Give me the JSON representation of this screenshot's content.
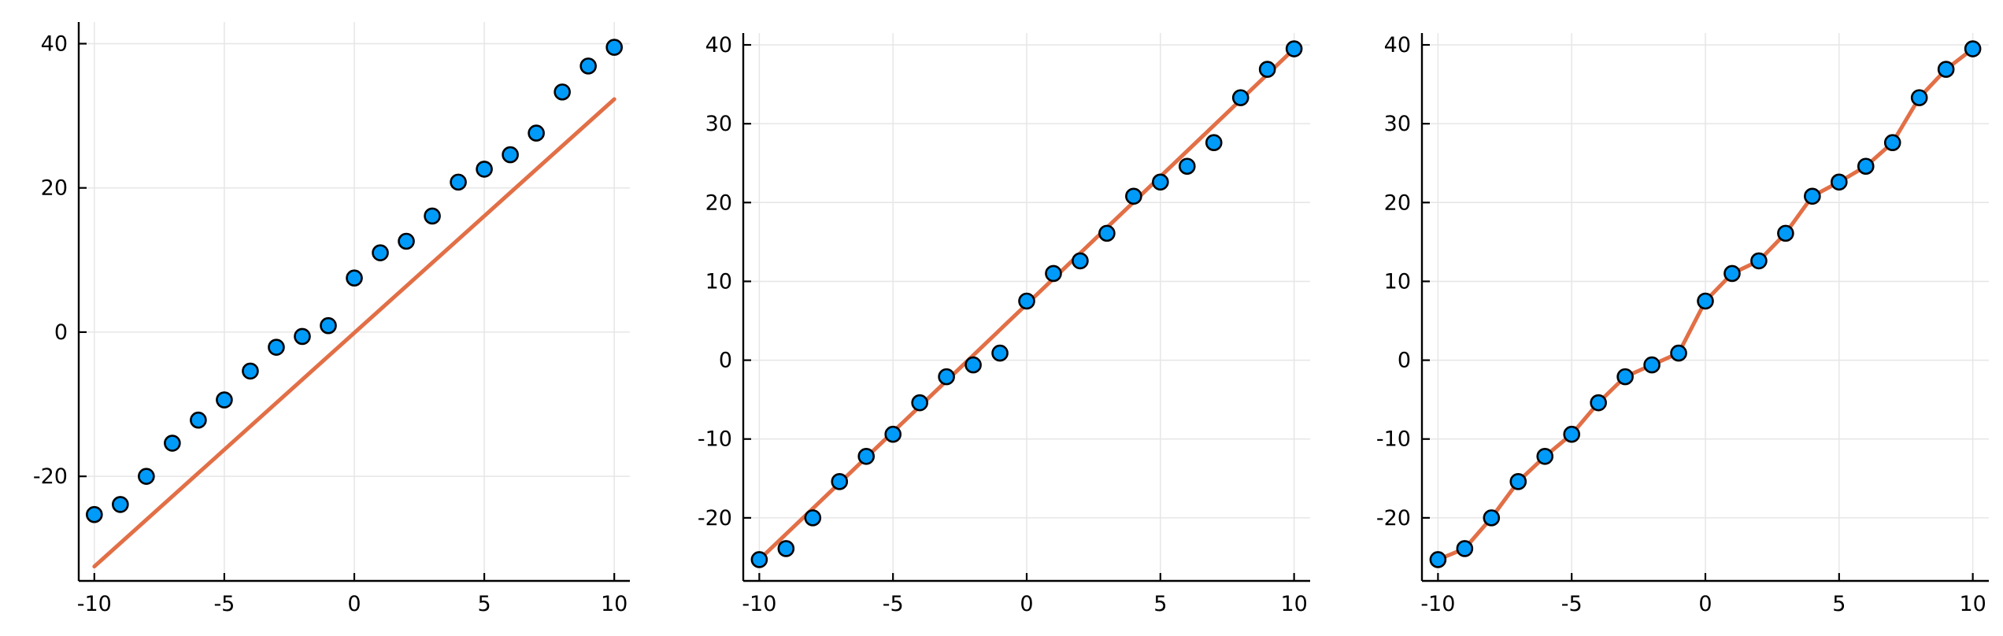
{
  "chart_data": [
    {
      "type": "scatter",
      "title": "",
      "xlabel": "",
      "ylabel": "",
      "xlim": [
        -10.6,
        10.6
      ],
      "ylim": [
        -34.5,
        43
      ],
      "xticks": [
        -10,
        -5,
        0,
        5,
        10
      ],
      "yticks": [
        -20,
        0,
        20,
        40
      ],
      "grid": true,
      "legend": "none",
      "x": [
        -10,
        -9,
        -8,
        -7,
        -6,
        -5,
        -4,
        -3,
        -2,
        -1,
        0,
        1,
        2,
        3,
        4,
        5,
        6,
        7,
        8,
        9,
        10
      ],
      "y": [
        -25.3,
        -23.9,
        -20.0,
        -15.4,
        -12.2,
        -9.4,
        -5.4,
        -2.1,
        -0.6,
        0.9,
        7.5,
        11.0,
        12.6,
        16.1,
        20.8,
        22.6,
        24.6,
        27.6,
        33.3,
        36.9,
        39.5
      ],
      "line": {
        "x": [
          -10,
          10
        ],
        "y": [
          -32.5,
          32.3
        ]
      },
      "colors": {
        "points": "#009af9",
        "line": "#e26f46"
      }
    },
    {
      "type": "scatter",
      "title": "",
      "xlabel": "",
      "ylabel": "",
      "xlim": [
        -10.6,
        10.6
      ],
      "ylim": [
        -28,
        41.5
      ],
      "xticks": [
        -10,
        -5,
        0,
        5,
        10
      ],
      "yticks": [
        -20,
        -10,
        0,
        10,
        20,
        30,
        40
      ],
      "grid": true,
      "legend": "none",
      "x": [
        -10,
        -9,
        -8,
        -7,
        -6,
        -5,
        -4,
        -3,
        -2,
        -1,
        0,
        1,
        2,
        3,
        4,
        5,
        6,
        7,
        8,
        9,
        10
      ],
      "y": [
        -25.3,
        -23.9,
        -20.0,
        -15.4,
        -12.2,
        -9.4,
        -5.4,
        -2.1,
        -0.6,
        0.9,
        7.5,
        11.0,
        12.6,
        16.1,
        20.8,
        22.6,
        24.6,
        27.6,
        33.3,
        36.9,
        39.5
      ],
      "line": {
        "x": [
          -10,
          10
        ],
        "y": [
          -25.3,
          39.5
        ]
      },
      "colors": {
        "points": "#009af9",
        "line": "#e26f46"
      }
    },
    {
      "type": "line",
      "title": "",
      "xlabel": "",
      "ylabel": "",
      "xlim": [
        -10.6,
        10.6
      ],
      "ylim": [
        -28,
        41.5
      ],
      "xticks": [
        -10,
        -5,
        0,
        5,
        10
      ],
      "yticks": [
        -20,
        -10,
        0,
        10,
        20,
        30,
        40
      ],
      "grid": true,
      "legend": "none",
      "x": [
        -10,
        -9,
        -8,
        -7,
        -6,
        -5,
        -4,
        -3,
        -2,
        -1,
        0,
        1,
        2,
        3,
        4,
        5,
        6,
        7,
        8,
        9,
        10
      ],
      "y": [
        -25.3,
        -23.9,
        -20.0,
        -15.4,
        -12.2,
        -9.4,
        -5.4,
        -2.1,
        -0.6,
        0.9,
        7.5,
        11.0,
        12.6,
        16.1,
        20.8,
        22.6,
        24.6,
        27.6,
        33.3,
        36.9,
        39.5
      ],
      "line": {
        "x": [
          -10,
          -9,
          -8,
          -7,
          -6,
          -5,
          -4,
          -3,
          -2,
          -1,
          0,
          1,
          2,
          3,
          4,
          5,
          6,
          7,
          8,
          9,
          10
        ],
        "y": [
          -25.3,
          -23.9,
          -20.0,
          -15.4,
          -12.2,
          -9.4,
          -5.4,
          -2.1,
          -0.6,
          0.9,
          7.5,
          11.0,
          12.6,
          16.1,
          20.8,
          22.6,
          24.6,
          27.6,
          33.3,
          36.9,
          39.5
        ]
      },
      "colors": {
        "points": "#009af9",
        "line": "#e26f46"
      }
    }
  ]
}
